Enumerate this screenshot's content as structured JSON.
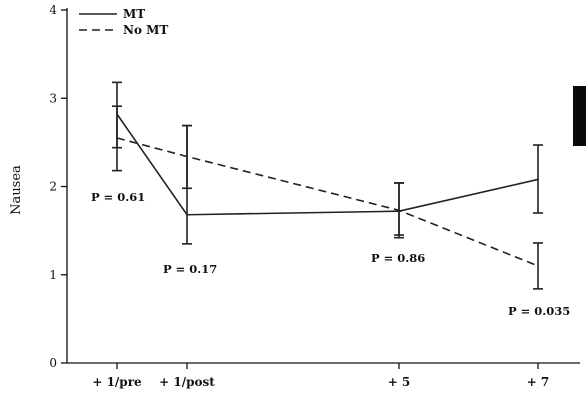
{
  "chart_data": {
    "type": "line",
    "ylabel": "Nausea",
    "ylim": [
      0,
      4
    ],
    "yticks": [
      0,
      1,
      2,
      3,
      4
    ],
    "categories": [
      "+ 1/pre",
      "+ 1/post",
      "+ 5",
      "+ 7"
    ],
    "series": [
      {
        "name": "MT",
        "style": "solid",
        "values": [
          2.82,
          1.68,
          1.72,
          2.08
        ],
        "err_low": [
          2.18,
          1.35,
          1.42,
          1.7
        ],
        "err_high": [
          3.18,
          2.69,
          2.04,
          2.47
        ]
      },
      {
        "name": "No MT",
        "style": "dashed",
        "values": [
          2.55,
          2.34,
          1.73,
          1.1
        ],
        "err_low": [
          2.44,
          1.98,
          1.45,
          0.84
        ],
        "err_high": [
          2.91,
          2.69,
          2.04,
          1.36
        ]
      }
    ],
    "annotations": [
      {
        "text": "P = 0.61",
        "category": 0
      },
      {
        "text": "P = 0.17",
        "category": 1
      },
      {
        "text": "P = 0.86",
        "category": 2
      },
      {
        "text": "P = 0.035",
        "category": 3
      }
    ],
    "legend": "top-left",
    "grid": false
  }
}
